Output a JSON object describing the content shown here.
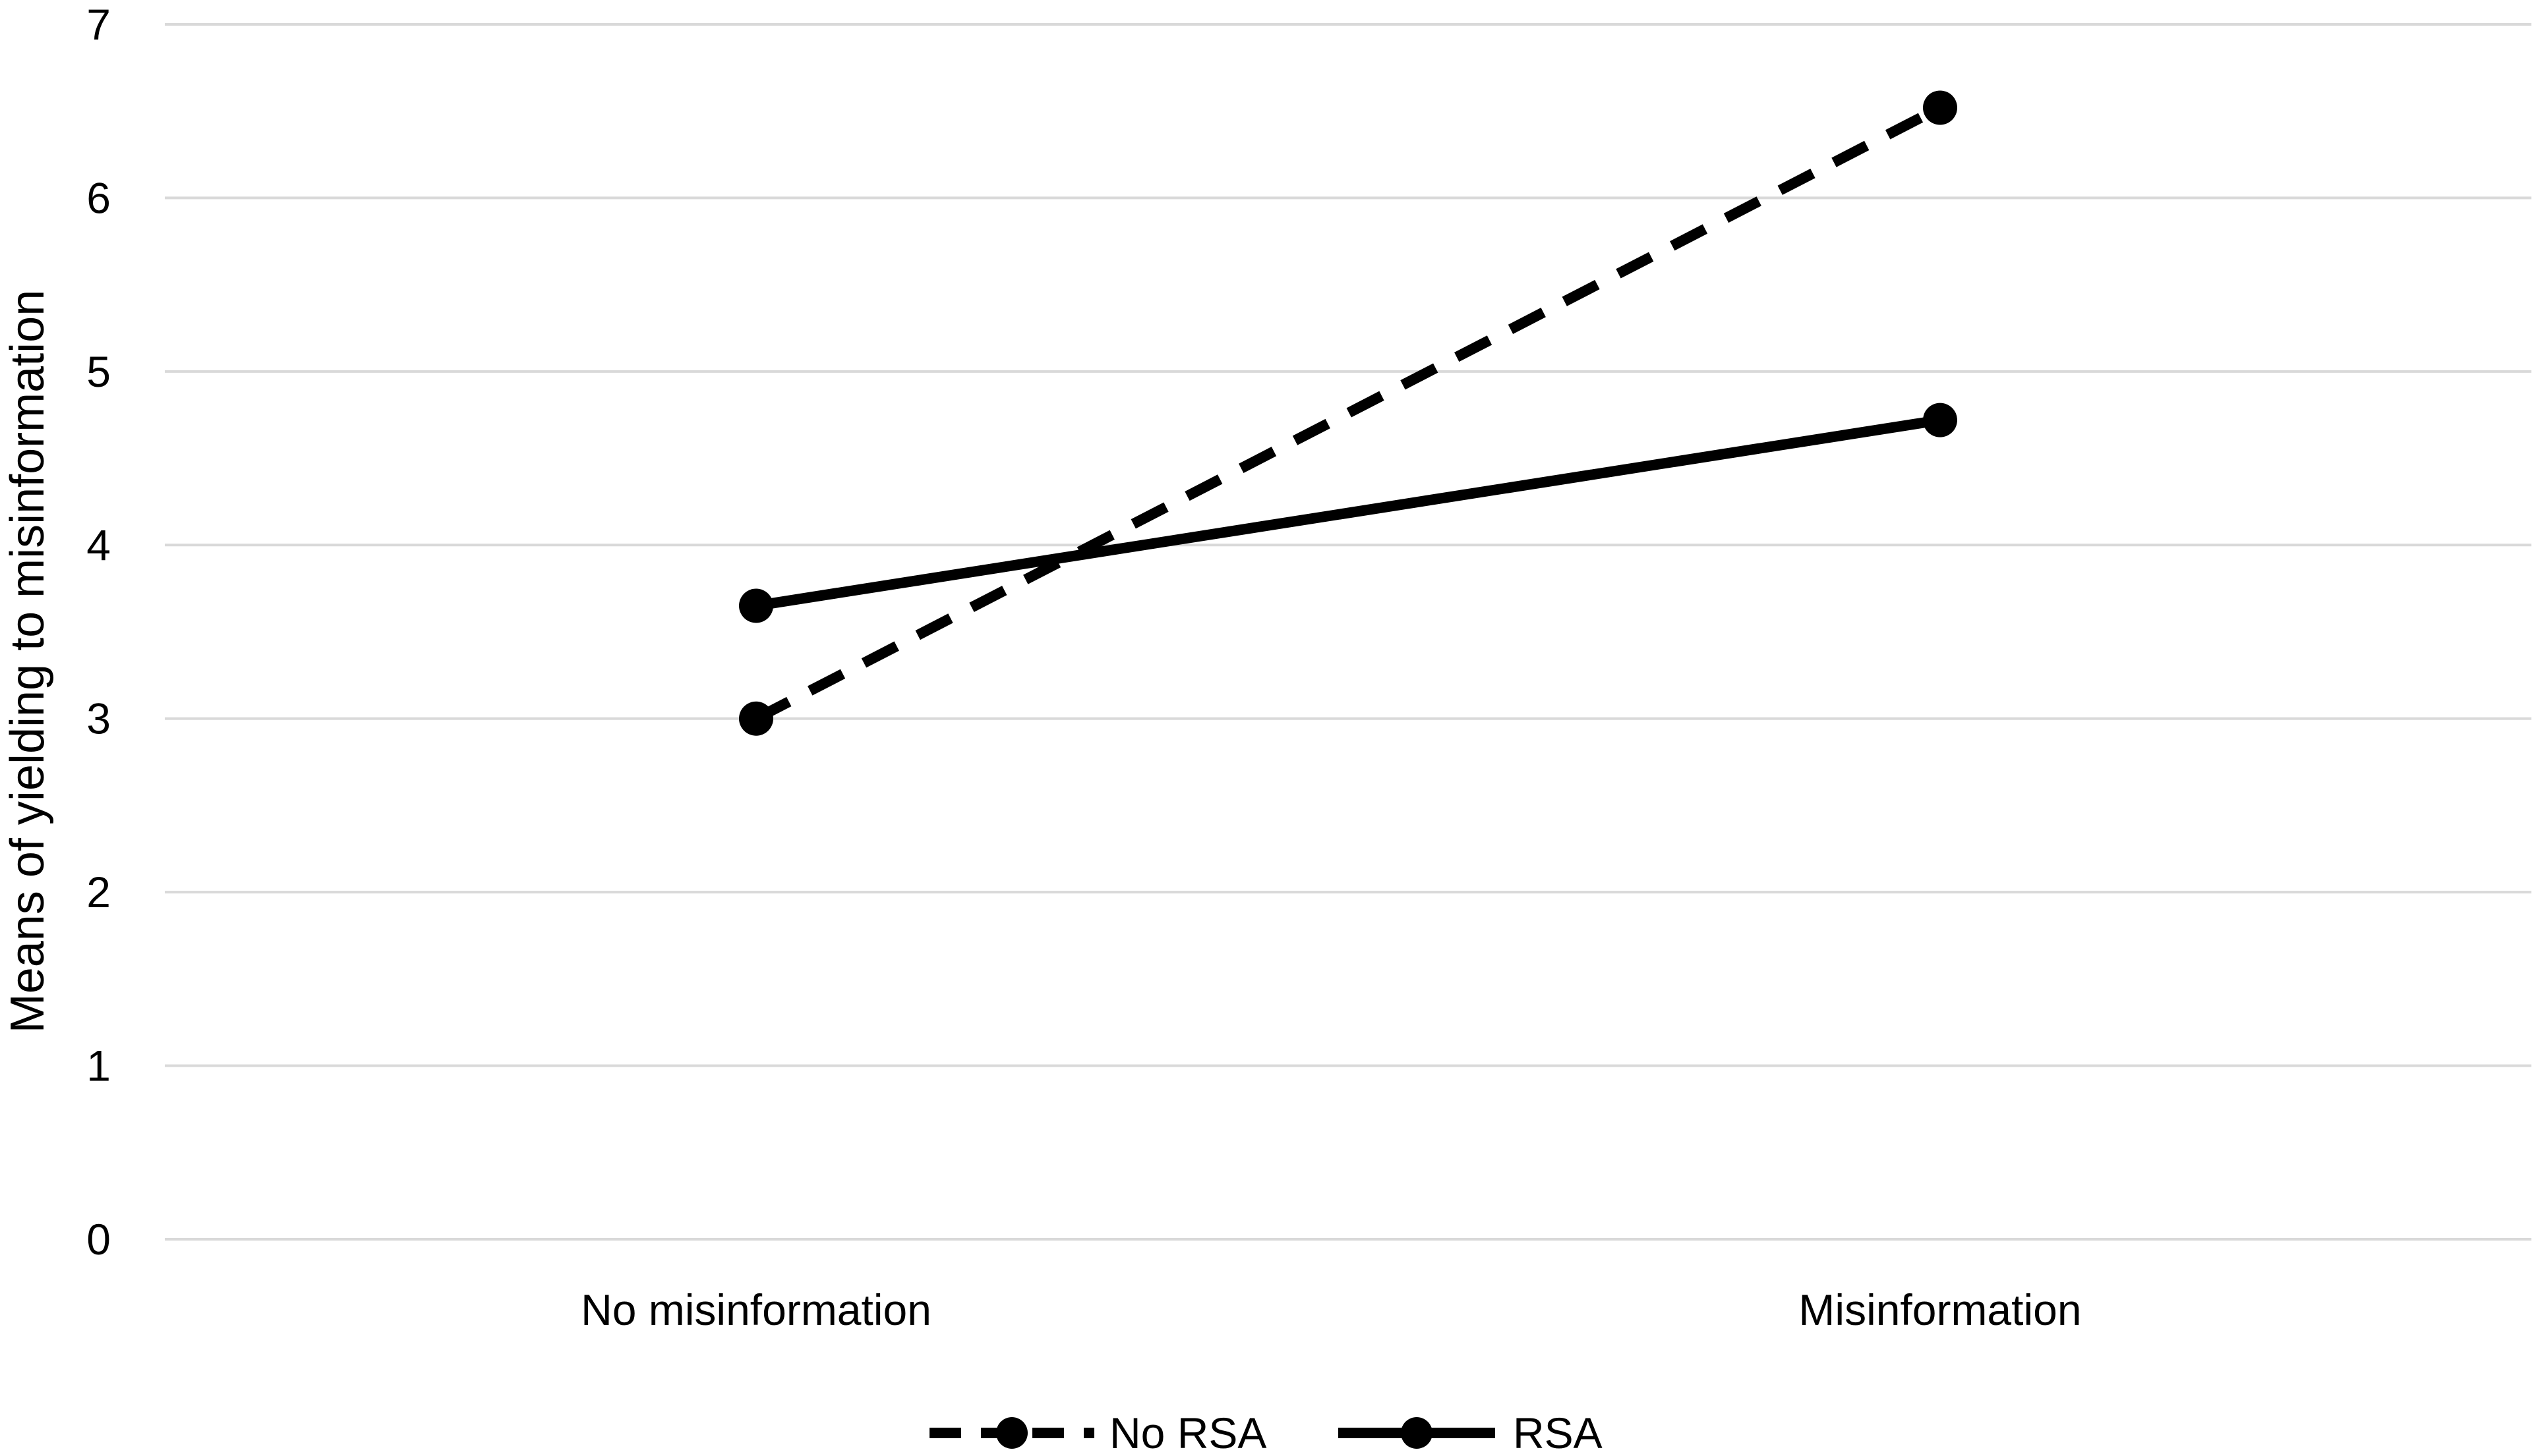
{
  "chart_data": {
    "type": "line",
    "title": "",
    "xlabel": "",
    "ylabel": "Means of yielding to misinformation",
    "categories": [
      "No misinformation",
      "Misinformation"
    ],
    "ylim": [
      0,
      7
    ],
    "yticks": [
      0,
      1,
      2,
      3,
      4,
      5,
      6,
      7
    ],
    "grid": true,
    "legend_position": "bottom",
    "series": [
      {
        "name": "No RSA",
        "values": [
          3.0,
          6.52
        ],
        "line_style": "dashed",
        "marker": "circle",
        "color": "#000000"
      },
      {
        "name": "RSA",
        "values": [
          3.65,
          4.72
        ],
        "line_style": "solid",
        "marker": "circle",
        "color": "#000000"
      }
    ],
    "colors": {
      "gridline": "#d9d9d9",
      "text": "#000000",
      "background": "#ffffff"
    }
  }
}
